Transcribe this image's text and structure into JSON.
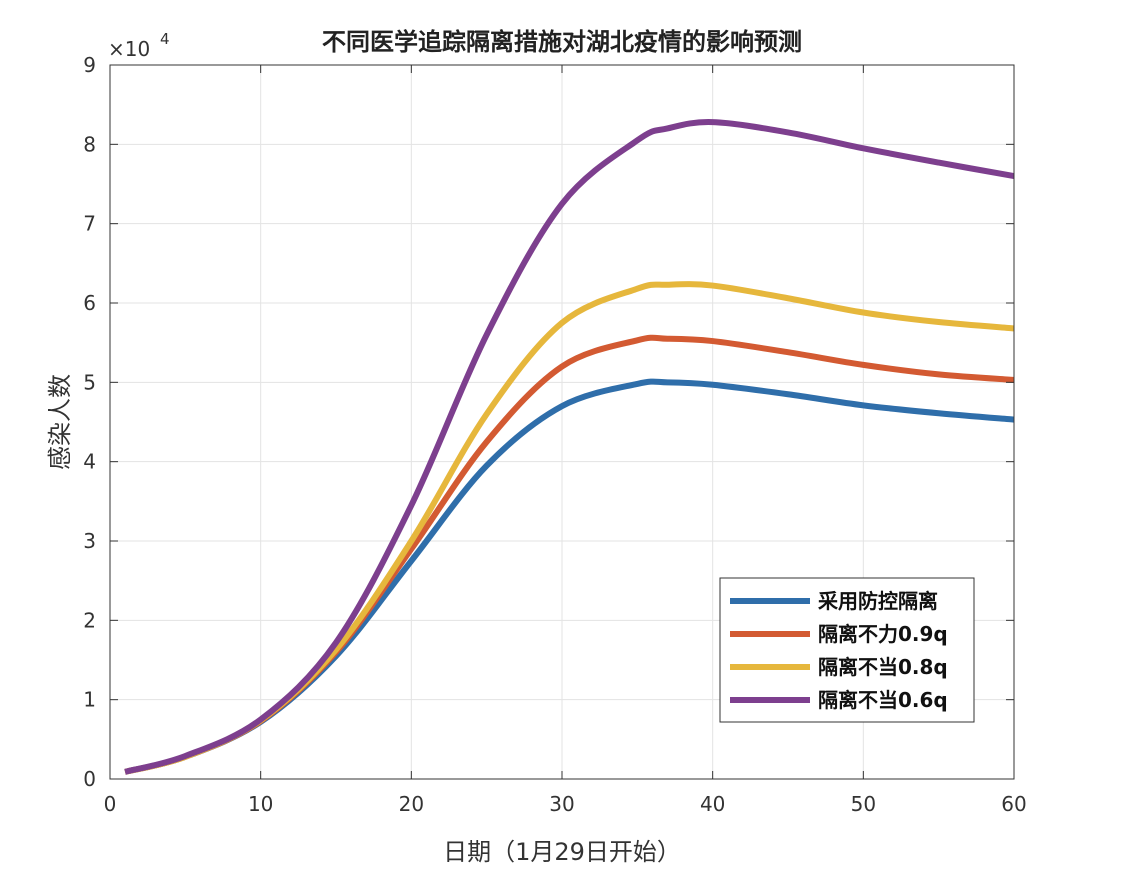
{
  "chart_data": {
    "type": "line",
    "title": "不同医学追踪隔离措施对湖北疫情的影响预测",
    "xlabel": "日期（1月29日开始）",
    "ylabel": "感染人数",
    "y_exponent_label": "×10",
    "y_exponent_power": "4",
    "xlim": [
      0,
      60
    ],
    "ylim": [
      0,
      9
    ],
    "x_ticks": [
      "0",
      "10",
      "20",
      "30",
      "40",
      "50",
      "60"
    ],
    "y_ticks": [
      "0",
      "1",
      "2",
      "3",
      "4",
      "5",
      "6",
      "7",
      "8",
      "9"
    ],
    "x_tick_values": [
      0,
      10,
      20,
      30,
      40,
      50,
      60
    ],
    "y_tick_values": [
      0,
      1,
      2,
      3,
      4,
      5,
      6,
      7,
      8,
      9
    ],
    "grid": true,
    "legend_position": "bottom-right",
    "x": [
      1,
      5,
      10,
      15,
      20,
      25,
      30,
      35,
      37,
      40,
      45,
      50,
      55,
      60
    ],
    "series": [
      {
        "name": "采用防控隔离",
        "color": "#2f6eaa",
        "values": [
          0.09,
          0.28,
          0.72,
          1.55,
          2.75,
          3.95,
          4.7,
          4.98,
          5.0,
          4.97,
          4.85,
          4.71,
          4.61,
          4.53
        ]
      },
      {
        "name": "隔离不力0.9q",
        "color": "#d35a32",
        "values": [
          0.09,
          0.28,
          0.73,
          1.6,
          2.9,
          4.25,
          5.2,
          5.53,
          5.55,
          5.52,
          5.38,
          5.22,
          5.1,
          5.03
        ]
      },
      {
        "name": "隔离不当0.8q",
        "color": "#e6b73c",
        "values": [
          0.09,
          0.28,
          0.74,
          1.63,
          3.0,
          4.6,
          5.75,
          6.18,
          6.23,
          6.22,
          6.06,
          5.88,
          5.76,
          5.68
        ]
      },
      {
        "name": "隔离不当0.6q",
        "color": "#7d3f8e",
        "values": [
          0.09,
          0.29,
          0.75,
          1.72,
          3.45,
          5.6,
          7.25,
          8.05,
          8.2,
          8.28,
          8.15,
          7.95,
          7.77,
          7.6
        ]
      }
    ]
  }
}
